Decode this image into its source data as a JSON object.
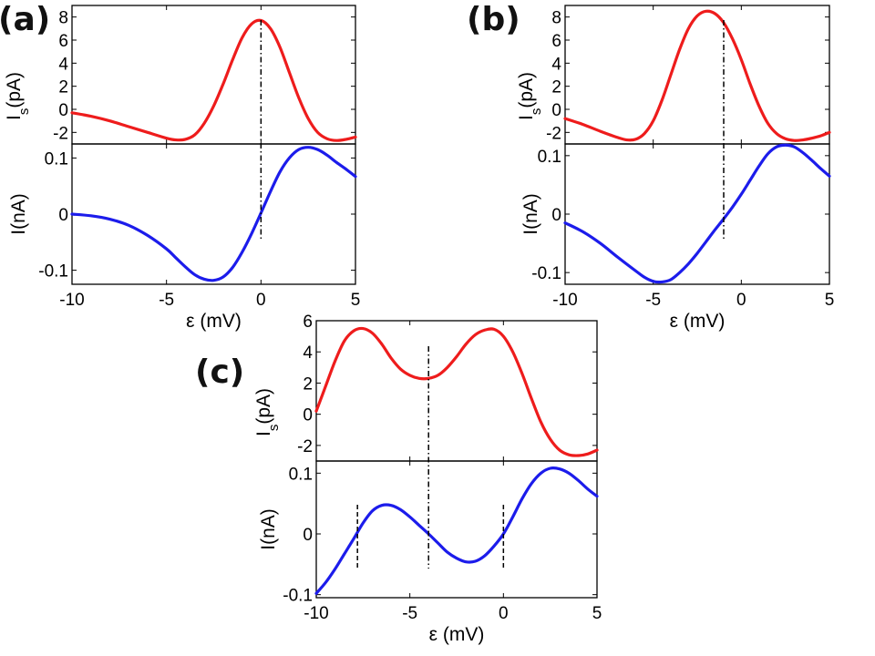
{
  "chart_data": [
    {
      "panel": "(a)",
      "type": "line",
      "x_range": [
        -10,
        5
      ],
      "x_ticks": [
        "-10",
        "-5",
        "0",
        "5"
      ],
      "xlabel": "ε (mV)",
      "top": {
        "ylabel_main": "I",
        "ylabel_sub": "s",
        "ylabel_unit": "(pA)",
        "ylim": [
          -3,
          9
        ],
        "y_ticks": [
          "-2",
          "0",
          "2",
          "4",
          "6",
          "8"
        ],
        "series": {
          "name": "Is",
          "color": "#ee1c1c",
          "x": [
            -10,
            -9,
            -8,
            -7,
            -6,
            -5,
            -4.5,
            -4,
            -3.5,
            -3,
            -2.5,
            -2,
            -1.5,
            -1,
            -0.5,
            0,
            0.5,
            1,
            1.5,
            2,
            2.5,
            3,
            3.5,
            4,
            4.5,
            5
          ],
          "y": [
            -0.3,
            -0.6,
            -1.0,
            -1.5,
            -2.0,
            -2.5,
            -2.65,
            -2.6,
            -2.2,
            -1.2,
            0.3,
            2.2,
            4.3,
            6.2,
            7.4,
            7.7,
            7.0,
            5.4,
            3.2,
            1.0,
            -0.8,
            -2.0,
            -2.55,
            -2.7,
            -2.6,
            -2.4
          ]
        }
      },
      "bottom": {
        "ylabel": "I(nA)",
        "ylim": [
          -0.125,
          0.125
        ],
        "y_ticks": [
          "-0.1",
          "0",
          "0.1"
        ],
        "series": {
          "name": "I",
          "color": "#1c1ceb",
          "x": [
            -10,
            -9,
            -8,
            -7,
            -6,
            -5,
            -4.5,
            -4,
            -3.5,
            -3,
            -2.5,
            -2,
            -1.5,
            -1,
            -0.5,
            0,
            0.5,
            1,
            1.5,
            2,
            2.5,
            3,
            3.5,
            4,
            4.5,
            5
          ],
          "y": [
            0,
            -0.003,
            -0.009,
            -0.02,
            -0.038,
            -0.062,
            -0.078,
            -0.094,
            -0.108,
            -0.116,
            -0.118,
            -0.112,
            -0.095,
            -0.068,
            -0.035,
            0.002,
            0.04,
            0.075,
            0.1,
            0.115,
            0.119,
            0.115,
            0.105,
            0.092,
            0.08,
            0.067
          ]
        }
      },
      "markers": [
        {
          "x": 0,
          "style": "dash-dot",
          "spans": "both"
        }
      ]
    },
    {
      "panel": "(b)",
      "type": "line",
      "x_range": [
        -10,
        5
      ],
      "x_ticks": [
        "-10",
        "-5",
        "0",
        "5"
      ],
      "xlabel": "ε (mV)",
      "top": {
        "ylabel_main": "I",
        "ylabel_sub": "s",
        "ylabel_unit": "(pA)",
        "ylim": [
          -3,
          9
        ],
        "y_ticks": [
          "-2",
          "0",
          "2",
          "4",
          "6",
          "8"
        ],
        "series": {
          "name": "Is",
          "color": "#ee1c1c",
          "x": [
            -10,
            -9,
            -8,
            -7,
            -6.5,
            -6,
            -5.5,
            -5,
            -4.5,
            -4,
            -3.5,
            -3,
            -2.5,
            -2,
            -1.5,
            -1,
            -0.5,
            0,
            0.5,
            1,
            1.5,
            2,
            2.5,
            3,
            3.5,
            4,
            4.5,
            5
          ],
          "y": [
            -0.8,
            -1.3,
            -1.9,
            -2.45,
            -2.65,
            -2.6,
            -2.1,
            -1.0,
            0.8,
            3.0,
            5.2,
            7.0,
            8.1,
            8.5,
            8.3,
            7.5,
            6.1,
            4.3,
            2.2,
            0.3,
            -1.2,
            -2.1,
            -2.55,
            -2.7,
            -2.65,
            -2.5,
            -2.3,
            -2.0
          ]
        }
      },
      "bottom": {
        "ylabel": "I(nA)",
        "ylim": [
          -0.12,
          0.12
        ],
        "y_ticks": [
          "-0.1",
          "0",
          "0.1"
        ],
        "series": {
          "name": "I",
          "color": "#1c1ceb",
          "x": [
            -10,
            -9,
            -8,
            -7,
            -6,
            -5.5,
            -5,
            -4.5,
            -4,
            -3.5,
            -3,
            -2.5,
            -2,
            -1.5,
            -1,
            -0.5,
            0,
            0.5,
            1,
            1.5,
            2,
            2.5,
            3,
            3.5,
            4,
            4.5,
            5
          ],
          "y": [
            -0.015,
            -0.03,
            -0.05,
            -0.074,
            -0.097,
            -0.108,
            -0.115,
            -0.116,
            -0.112,
            -0.1,
            -0.085,
            -0.067,
            -0.047,
            -0.027,
            -0.008,
            0.012,
            0.034,
            0.058,
            0.082,
            0.103,
            0.115,
            0.118,
            0.115,
            0.105,
            0.092,
            0.078,
            0.065
          ]
        }
      },
      "markers": [
        {
          "x": -1,
          "style": "dash-dot",
          "spans": "both"
        }
      ]
    },
    {
      "panel": "(c)",
      "type": "line",
      "x_range": [
        -10,
        5
      ],
      "x_ticks": [
        "-10",
        "-5",
        "0",
        "5"
      ],
      "xlabel": "ε (mV)",
      "top": {
        "ylabel_main": "I",
        "ylabel_sub": "s",
        "ylabel_unit": "(pA)",
        "ylim": [
          -3,
          6
        ],
        "y_ticks": [
          "-2",
          "0",
          "2",
          "4",
          "6"
        ],
        "series": {
          "name": "Is",
          "color": "#ee1c1c",
          "x": [
            -10,
            -9.5,
            -9,
            -8.5,
            -8,
            -7.5,
            -7,
            -6.5,
            -6,
            -5.5,
            -5,
            -4.5,
            -4,
            -3.5,
            -3,
            -2.5,
            -2,
            -1.5,
            -1,
            -0.5,
            0,
            0.5,
            1,
            1.5,
            2,
            2.5,
            3,
            3.5,
            4,
            4.5,
            5
          ],
          "y": [
            0.2,
            1.8,
            3.4,
            4.7,
            5.35,
            5.5,
            5.2,
            4.5,
            3.6,
            2.9,
            2.5,
            2.3,
            2.3,
            2.5,
            3.0,
            3.7,
            4.5,
            5.1,
            5.4,
            5.45,
            5.0,
            4.0,
            2.6,
            1.0,
            -0.5,
            -1.6,
            -2.3,
            -2.6,
            -2.65,
            -2.55,
            -2.3
          ]
        }
      },
      "bottom": {
        "ylabel": "I(nA)",
        "ylim": [
          -0.105,
          0.12
        ],
        "y_ticks": [
          "-0.1",
          "0",
          "0.1"
        ],
        "series": {
          "name": "I",
          "color": "#1c1ceb",
          "x": [
            -10,
            -9.5,
            -9,
            -8.5,
            -8,
            -7.5,
            -7,
            -6.5,
            -6,
            -5.5,
            -5,
            -4.5,
            -4,
            -3.5,
            -3,
            -2.5,
            -2,
            -1.5,
            -1,
            -0.5,
            0,
            0.5,
            1,
            1.5,
            2,
            2.5,
            3,
            3.5,
            4,
            4.5,
            5
          ],
          "y": [
            -0.098,
            -0.08,
            -0.058,
            -0.033,
            -0.008,
            0.018,
            0.038,
            0.047,
            0.047,
            0.04,
            0.028,
            0.014,
            0.0,
            -0.015,
            -0.03,
            -0.04,
            -0.046,
            -0.045,
            -0.036,
            -0.02,
            0.0,
            0.028,
            0.058,
            0.083,
            0.1,
            0.108,
            0.107,
            0.1,
            0.088,
            0.074,
            0.062
          ]
        }
      },
      "markers": [
        {
          "x": -4,
          "style": "dash-dot",
          "spans": "both"
        },
        {
          "x": -7.8,
          "style": "dashed",
          "spans": "bottom"
        },
        {
          "x": 0,
          "style": "dashed",
          "spans": "bottom"
        }
      ]
    }
  ]
}
